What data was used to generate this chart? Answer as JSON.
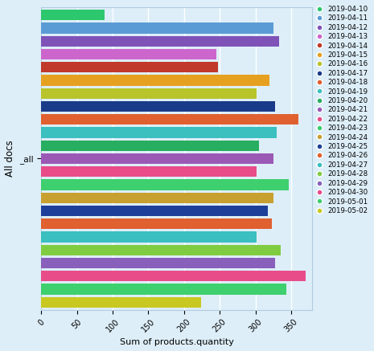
{
  "xlabel": "Sum of products.quantity",
  "ylabel": "All docs",
  "y_label2": "_all",
  "legend_labels": [
    "2019-04-10",
    "2019-04-11",
    "2019-04-12",
    "2019-04-13",
    "2019-04-14",
    "2019-04-15",
    "2019-04-16",
    "2019-04-17",
    "2019-04-18",
    "2019-04-19",
    "2019-04-20",
    "2019-04-21",
    "2019-04-22",
    "2019-04-23",
    "2019-04-24",
    "2019-04-25",
    "2019-04-26",
    "2019-04-27",
    "2019-04-28",
    "2019-04-29",
    "2019-04-30",
    "2019-05-01",
    "2019-05-02"
  ],
  "colors": [
    "#2dc76e",
    "#5b9bd5",
    "#7f52b8",
    "#cc66cc",
    "#c0392b",
    "#e6a020",
    "#b8c42a",
    "#1a3a8a",
    "#e06030",
    "#3bbfbf",
    "#27ae60",
    "#9b59b6",
    "#e84d8a",
    "#3ecf6e",
    "#c8a030",
    "#1e3f99",
    "#e06030",
    "#3bbfbf",
    "#80cc40",
    "#8860bb",
    "#e84d8a",
    "#3ecf6e",
    "#c8c820"
  ],
  "bar_values": [
    88,
    325,
    333,
    245,
    247,
    320,
    302,
    328,
    360,
    330,
    305,
    325,
    302,
    347,
    325,
    317,
    323,
    302,
    335,
    328,
    370,
    343,
    224
  ],
  "xlim": [
    0,
    380
  ],
  "xticks": [
    0,
    50,
    100,
    150,
    200,
    250,
    300,
    350
  ],
  "background_color": "#ddeef8",
  "grid_color": "#ffffff",
  "bar_height": 0.82
}
